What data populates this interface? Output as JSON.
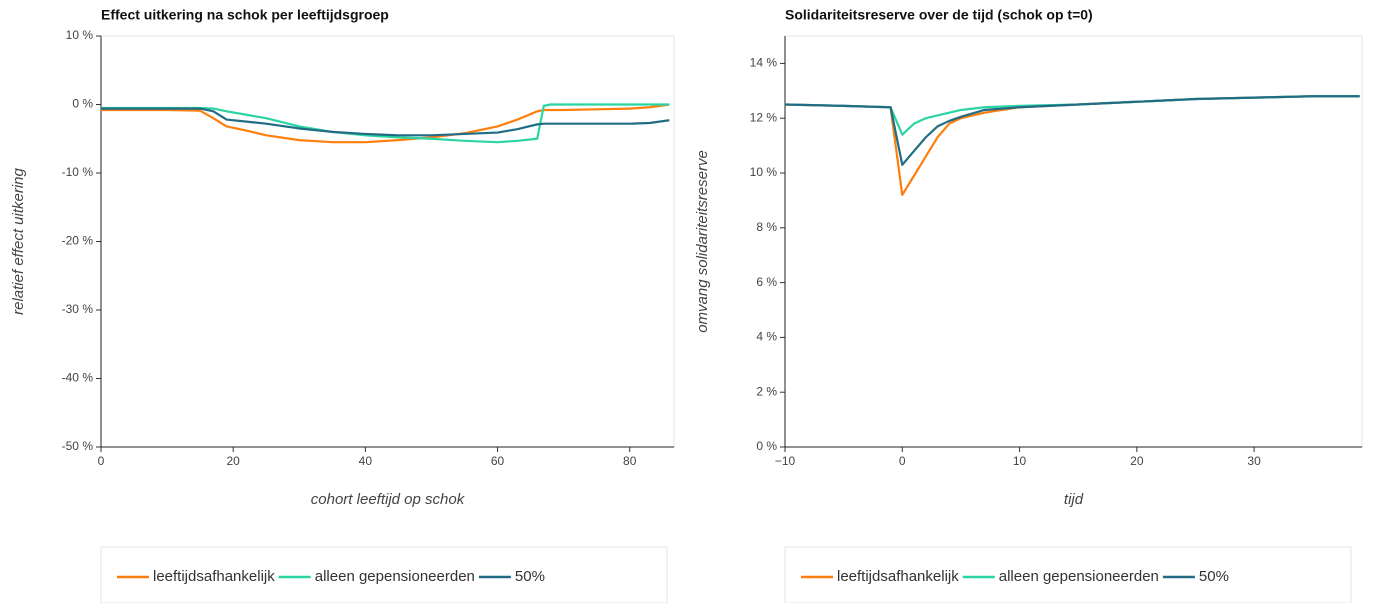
{
  "chart_data": [
    {
      "type": "line",
      "title": "Effect uitkering na schok per leeftijdsgroep",
      "x_label": "cohort leeftijd op schok",
      "y_label": "relatief effect uitkering",
      "x": [
        0,
        5,
        10,
        15,
        17,
        19,
        22,
        25,
        30,
        35,
        40,
        45,
        50,
        55,
        60,
        63,
        66,
        67,
        68,
        70,
        75,
        80,
        83,
        86
      ],
      "series": [
        {
          "name": "leeftijdsafhankelijk",
          "color": "#ff7f0e",
          "values": [
            -0.8,
            -0.8,
            -0.8,
            -0.9,
            -2.0,
            -3.2,
            -3.8,
            -4.5,
            -5.2,
            -5.5,
            -5.5,
            -5.2,
            -4.8,
            -4.2,
            -3.2,
            -2.2,
            -1.0,
            -0.8,
            -0.8,
            -0.8,
            -0.7,
            -0.6,
            -0.4,
            0
          ]
        },
        {
          "name": "alleen gepensioneerden",
          "color": "#2bd4a3",
          "values": [
            -0.5,
            -0.5,
            -0.5,
            -0.5,
            -0.6,
            -1.0,
            -1.5,
            -2.0,
            -3.2,
            -4.0,
            -4.5,
            -4.8,
            -5.0,
            -5.3,
            -5.5,
            -5.3,
            -5.0,
            -0.2,
            0,
            0,
            0,
            0,
            0,
            0
          ]
        },
        {
          "name": "50%",
          "color": "#216d86",
          "values": [
            -0.6,
            -0.6,
            -0.6,
            -0.6,
            -1.0,
            -2.2,
            -2.5,
            -2.8,
            -3.5,
            -4.0,
            -4.3,
            -4.5,
            -4.5,
            -4.3,
            -4.1,
            -3.6,
            -2.9,
            -2.8,
            -2.8,
            -2.8,
            -2.8,
            -2.8,
            -2.7,
            -2.3
          ]
        }
      ],
      "xlim": [
        0,
        86.7
      ],
      "xticks": [
        0,
        20,
        40,
        60,
        80
      ],
      "ylim": [
        -50,
        10
      ],
      "yticks": [
        {
          "value": 10,
          "label": "10 %"
        },
        {
          "value": 0,
          "label": "0 %"
        },
        {
          "value": -10,
          "label": "-10 %"
        },
        {
          "value": -20,
          "label": "-20 %"
        },
        {
          "value": -30,
          "label": "-30 %"
        },
        {
          "value": -40,
          "label": "-40 %"
        },
        {
          "value": -50,
          "label": "-50 %"
        }
      ],
      "grid": false,
      "legend": "bottom"
    },
    {
      "type": "line",
      "title": "Solidariteitsreserve over de tijd (schok op t=0)",
      "x_label": "tijd",
      "y_label": "omvang solidariteitsreserve",
      "x": [
        -10,
        -5,
        -1,
        0,
        1,
        2,
        3,
        4,
        5,
        7,
        10,
        15,
        20,
        25,
        30,
        35,
        39
      ],
      "series": [
        {
          "name": "leeftijdsafhankelijk",
          "color": "#ff7f0e",
          "values": [
            12.5,
            12.45,
            12.4,
            9.2,
            9.9,
            10.6,
            11.3,
            11.8,
            12.0,
            12.2,
            12.4,
            12.5,
            12.6,
            12.7,
            12.75,
            12.8,
            12.8
          ]
        },
        {
          "name": "alleen gepensioneerden",
          "color": "#2bd4a3",
          "values": [
            12.5,
            12.45,
            12.4,
            11.4,
            11.8,
            12.0,
            12.1,
            12.2,
            12.3,
            12.4,
            12.45,
            12.5,
            12.6,
            12.7,
            12.75,
            12.8,
            12.8
          ]
        },
        {
          "name": "50%",
          "color": "#216d86",
          "values": [
            12.5,
            12.45,
            12.4,
            10.3,
            10.8,
            11.3,
            11.7,
            11.9,
            12.05,
            12.3,
            12.4,
            12.5,
            12.6,
            12.7,
            12.75,
            12.8,
            12.8
          ]
        }
      ],
      "xlim": [
        -10,
        39.2
      ],
      "xticks": [
        {
          "value": -10,
          "label": "−10"
        },
        0,
        10,
        20,
        30
      ],
      "ylim": [
        0,
        15
      ],
      "yticks": [
        {
          "value": 0,
          "label": "0 %"
        },
        {
          "value": 2,
          "label": "2 %"
        },
        {
          "value": 4,
          "label": "4 %"
        },
        {
          "value": 6,
          "label": "6 %"
        },
        {
          "value": 8,
          "label": "8 %"
        },
        {
          "value": 10,
          "label": "10 %"
        },
        {
          "value": 12,
          "label": "12 %"
        },
        {
          "value": 14,
          "label": "14 %"
        }
      ],
      "grid": false,
      "legend": "bottom"
    }
  ]
}
